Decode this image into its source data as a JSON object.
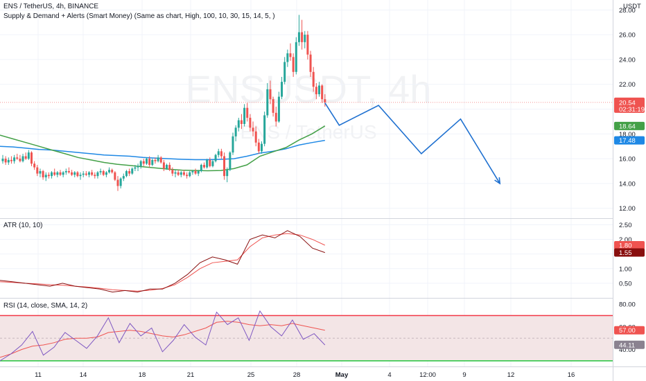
{
  "header": {
    "title": "ENS / TetherUS, 4h, BINANCE",
    "indicator": "Supply & Demand + Alerts (Smart Money) (Same as chart, High, 100, 10, 30, 15, 14, 5, )",
    "currency": "USDT"
  },
  "watermark": {
    "symbol": "ENSUSDT, 4h",
    "description": "ENS / TetherUS"
  },
  "colors": {
    "up": "#26a69a",
    "down": "#ef5350",
    "ma_green": "#43a047",
    "ma_blue": "#1e88e5",
    "projection": "#1e70d0",
    "atr": "#880e0e",
    "atr_ma": "#ef5350",
    "rsi": "#7e57c2",
    "rsi_ma": "#ef5350",
    "rsi_upper": "#f23645",
    "rsi_lower": "#22c33b",
    "rsi_band": "#f3e5e6"
  },
  "chart_data": [
    {
      "type": "candlestick",
      "pane": "price",
      "ylim": [
        11.2,
        28.8
      ],
      "yticks": [
        "12.00",
        "14.00",
        "16.00",
        "18.00",
        "20.00",
        "22.00",
        "24.00",
        "26.00",
        "28.00"
      ],
      "last_price": "20.54",
      "countdown": "02:31:19",
      "ma_green_last": "18.64",
      "ma_blue_last": "17.48",
      "candles": [
        [
          15.8,
          16.3,
          15.6,
          16.0
        ],
        [
          16.0,
          16.2,
          15.5,
          15.7
        ],
        [
          15.7,
          16.1,
          15.5,
          15.9
        ],
        [
          15.9,
          16.2,
          15.6,
          15.8
        ],
        [
          15.8,
          16.3,
          15.6,
          16.1
        ],
        [
          16.1,
          16.4,
          15.9,
          16.0
        ],
        [
          16.0,
          16.3,
          15.7,
          15.8
        ],
        [
          15.8,
          16.4,
          15.7,
          16.2
        ],
        [
          16.2,
          16.5,
          15.9,
          16.0
        ],
        [
          16.0,
          16.7,
          15.9,
          16.5
        ],
        [
          16.5,
          16.6,
          15.4,
          15.6
        ],
        [
          15.6,
          15.8,
          15.1,
          15.3
        ],
        [
          15.3,
          15.5,
          14.6,
          14.8
        ],
        [
          14.8,
          15.2,
          14.5,
          15.0
        ],
        [
          15.0,
          15.1,
          14.3,
          14.5
        ],
        [
          14.5,
          14.9,
          14.2,
          14.7
        ],
        [
          14.7,
          14.9,
          14.4,
          14.6
        ],
        [
          14.6,
          15.0,
          14.4,
          14.9
        ],
        [
          14.9,
          15.2,
          14.6,
          14.7
        ],
        [
          14.7,
          15.0,
          14.5,
          14.9
        ],
        [
          14.9,
          15.1,
          14.6,
          14.7
        ],
        [
          14.7,
          15.0,
          14.5,
          14.9
        ],
        [
          14.9,
          15.2,
          14.7,
          15.0
        ],
        [
          15.0,
          15.3,
          14.8,
          14.9
        ],
        [
          14.9,
          15.1,
          14.6,
          14.7
        ],
        [
          14.7,
          15.0,
          14.5,
          14.9
        ],
        [
          14.9,
          15.0,
          14.5,
          14.6
        ],
        [
          14.6,
          14.9,
          14.3,
          14.7
        ],
        [
          14.7,
          15.0,
          14.5,
          14.8
        ],
        [
          14.8,
          15.0,
          14.6,
          14.7
        ],
        [
          14.7,
          15.0,
          14.5,
          14.9
        ],
        [
          14.9,
          15.1,
          14.6,
          14.7
        ],
        [
          14.7,
          14.9,
          14.4,
          14.6
        ],
        [
          14.6,
          15.0,
          14.4,
          14.9
        ],
        [
          14.9,
          15.2,
          14.7,
          15.0
        ],
        [
          15.0,
          15.1,
          14.6,
          14.7
        ],
        [
          14.7,
          15.0,
          14.5,
          14.9
        ],
        [
          14.9,
          15.3,
          14.8,
          15.1
        ],
        [
          15.1,
          15.2,
          14.8,
          14.9
        ],
        [
          14.9,
          15.0,
          14.2,
          14.3
        ],
        [
          14.3,
          14.6,
          13.4,
          13.8
        ],
        [
          13.8,
          14.5,
          13.6,
          14.4
        ],
        [
          14.4,
          14.8,
          14.2,
          14.6
        ],
        [
          14.6,
          15.1,
          14.5,
          15.0
        ],
        [
          15.0,
          15.2,
          14.6,
          14.8
        ],
        [
          14.8,
          15.3,
          14.7,
          15.2
        ],
        [
          15.2,
          15.5,
          15.0,
          15.3
        ],
        [
          15.3,
          15.6,
          15.0,
          15.4
        ],
        [
          15.4,
          15.9,
          15.2,
          15.8
        ],
        [
          15.8,
          16.0,
          15.4,
          15.6
        ],
        [
          15.6,
          16.1,
          15.5,
          16.0
        ],
        [
          16.0,
          16.2,
          15.3,
          15.5
        ],
        [
          15.5,
          16.0,
          15.4,
          15.9
        ],
        [
          15.9,
          16.1,
          15.6,
          15.8
        ],
        [
          15.8,
          16.3,
          15.7,
          16.1
        ],
        [
          16.1,
          16.2,
          15.6,
          15.7
        ],
        [
          15.7,
          15.9,
          15.0,
          15.2
        ],
        [
          15.2,
          15.6,
          15.1,
          15.5
        ],
        [
          15.5,
          15.7,
          15.0,
          15.1
        ],
        [
          15.1,
          15.3,
          14.6,
          14.8
        ],
        [
          14.8,
          15.1,
          14.5,
          14.9
        ],
        [
          14.9,
          15.1,
          14.6,
          14.7
        ],
        [
          14.7,
          15.0,
          14.5,
          14.9
        ],
        [
          14.9,
          15.1,
          14.6,
          14.7
        ],
        [
          14.7,
          14.9,
          14.4,
          14.6
        ],
        [
          14.6,
          15.0,
          14.5,
          14.9
        ],
        [
          14.9,
          15.1,
          14.7,
          15.0
        ],
        [
          15.0,
          15.2,
          14.7,
          14.8
        ],
        [
          14.8,
          15.1,
          14.6,
          15.0
        ],
        [
          15.0,
          15.6,
          14.9,
          15.5
        ],
        [
          15.5,
          15.7,
          15.2,
          15.3
        ],
        [
          15.3,
          16.0,
          15.2,
          15.9
        ],
        [
          15.9,
          16.1,
          15.3,
          15.4
        ],
        [
          15.4,
          15.9,
          15.3,
          15.8
        ],
        [
          15.8,
          16.4,
          15.7,
          16.3
        ],
        [
          16.3,
          16.8,
          16.1,
          16.6
        ],
        [
          16.6,
          16.8,
          16.0,
          16.2
        ],
        [
          16.2,
          16.5,
          14.3,
          14.6
        ],
        [
          14.6,
          15.3,
          14.1,
          15.1
        ],
        [
          15.1,
          16.6,
          15.0,
          16.5
        ],
        [
          16.5,
          18.1,
          16.3,
          17.8
        ],
        [
          17.8,
          18.7,
          17.4,
          18.5
        ],
        [
          18.5,
          19.3,
          18.2,
          19.1
        ],
        [
          19.1,
          19.6,
          18.4,
          18.8
        ],
        [
          18.8,
          20.4,
          18.6,
          20.1
        ],
        [
          20.1,
          20.5,
          19.0,
          19.3
        ],
        [
          19.3,
          19.6,
          18.2,
          18.5
        ],
        [
          18.5,
          19.0,
          17.8,
          18.2
        ],
        [
          18.2,
          18.6,
          17.0,
          17.3
        ],
        [
          17.3,
          17.6,
          16.4,
          16.6
        ],
        [
          16.6,
          17.4,
          16.4,
          17.2
        ],
        [
          17.2,
          19.8,
          17.0,
          19.5
        ],
        [
          19.5,
          22.1,
          19.3,
          21.6
        ],
        [
          21.6,
          22.3,
          20.4,
          20.8
        ],
        [
          20.8,
          21.0,
          19.4,
          19.7
        ],
        [
          19.7,
          20.2,
          18.6,
          19.0
        ],
        [
          19.0,
          21.4,
          18.9,
          21.0
        ],
        [
          21.0,
          22.6,
          20.8,
          22.2
        ],
        [
          22.2,
          24.2,
          22.0,
          23.8
        ],
        [
          23.8,
          24.8,
          23.4,
          24.5
        ],
        [
          24.5,
          25.3,
          23.9,
          24.2
        ],
        [
          24.2,
          24.5,
          22.6,
          23.0
        ],
        [
          23.0,
          25.8,
          22.8,
          25.4
        ],
        [
          25.4,
          27.6,
          25.1,
          26.2
        ],
        [
          26.2,
          27.2,
          24.8,
          25.4
        ],
        [
          25.4,
          26.3,
          24.9,
          26.0
        ],
        [
          26.0,
          26.3,
          24.0,
          24.4
        ],
        [
          24.4,
          24.7,
          22.6,
          23.0
        ],
        [
          23.0,
          23.4,
          21.4,
          21.8
        ],
        [
          21.8,
          22.1,
          20.8,
          21.2
        ],
        [
          21.2,
          22.2,
          21.0,
          21.9
        ],
        [
          21.9,
          22.0,
          20.5,
          20.8
        ],
        [
          20.8,
          21.2,
          20.2,
          20.54
        ]
      ],
      "ma_green": [
        17.9,
        17.6,
        17.3,
        17.0,
        16.7,
        16.4,
        16.1,
        15.9,
        15.7,
        15.55,
        15.45,
        15.35,
        15.25,
        15.15,
        15.08,
        15.05,
        15.03,
        15.05,
        15.2,
        15.5,
        16.2,
        16.55,
        16.9,
        17.5,
        18.0,
        18.64
      ],
      "ma_blue": [
        17.0,
        16.95,
        16.85,
        16.75,
        16.7,
        16.6,
        16.5,
        16.4,
        16.3,
        16.25,
        16.2,
        16.1,
        16.05,
        16.0,
        15.95,
        15.92,
        15.92,
        15.95,
        16.0,
        16.2,
        16.45,
        16.6,
        16.8,
        17.1,
        17.3,
        17.48
      ],
      "projection": [
        [
          20.5,
          0
        ],
        [
          18.7,
          4
        ],
        [
          20.3,
          15
        ],
        [
          16.4,
          27
        ],
        [
          19.2,
          38
        ],
        [
          14.0,
          49
        ]
      ]
    },
    {
      "type": "line",
      "pane": "atr",
      "label": "ATR (10, 10)",
      "ylim": [
        0.0,
        2.7
      ],
      "yticks": [
        "0.50",
        "1.00",
        "1.50",
        "2.00",
        "2.50"
      ],
      "series": [
        {
          "name": "ATR",
          "values": [
            0.6,
            0.55,
            0.5,
            0.45,
            0.4,
            0.5,
            0.4,
            0.35,
            0.3,
            0.2,
            0.25,
            0.2,
            0.3,
            0.3,
            0.5,
            0.8,
            1.2,
            1.4,
            1.3,
            1.15,
            2.0,
            2.15,
            2.05,
            2.3,
            2.1,
            1.7,
            1.55
          ],
          "last": "1.55"
        },
        {
          "name": "MA",
          "values": [
            0.55,
            0.53,
            0.5,
            0.48,
            0.45,
            0.43,
            0.4,
            0.37,
            0.33,
            0.28,
            0.25,
            0.23,
            0.26,
            0.32,
            0.45,
            0.7,
            1.0,
            1.2,
            1.25,
            1.3,
            1.75,
            2.05,
            2.15,
            2.2,
            2.15,
            2.0,
            1.8
          ],
          "last": "1.80"
        }
      ]
    },
    {
      "type": "line",
      "pane": "rsi",
      "label": "RSI (14, close, SMA, 14, 2)",
      "ylim": [
        25,
        85
      ],
      "yticks": [
        "40.00",
        "60.00",
        "80.00"
      ],
      "upper_band": 70,
      "lower_band": 30,
      "series": [
        {
          "name": "RSI",
          "values": [
            30,
            36,
            44,
            56,
            35,
            42,
            55,
            48,
            41,
            52,
            68,
            46,
            63,
            52,
            59,
            38,
            48,
            62,
            51,
            44,
            73,
            62,
            68,
            48,
            74,
            60,
            52,
            66,
            49,
            54,
            44
          ],
          "last": "44.11"
        },
        {
          "name": "SMA",
          "values": [
            33,
            36,
            40,
            43,
            44,
            46,
            49,
            50,
            50,
            51,
            55,
            56,
            57,
            56,
            54,
            52,
            51,
            53,
            56,
            59,
            64,
            65,
            64,
            62,
            61,
            62,
            61,
            63,
            61,
            59,
            57
          ],
          "last": "57.00"
        }
      ]
    }
  ],
  "time_axis": [
    "11",
    "14",
    "18",
    "21",
    "25",
    "28",
    "May",
    "4",
    "12:00",
    "9",
    "12",
    "16"
  ]
}
